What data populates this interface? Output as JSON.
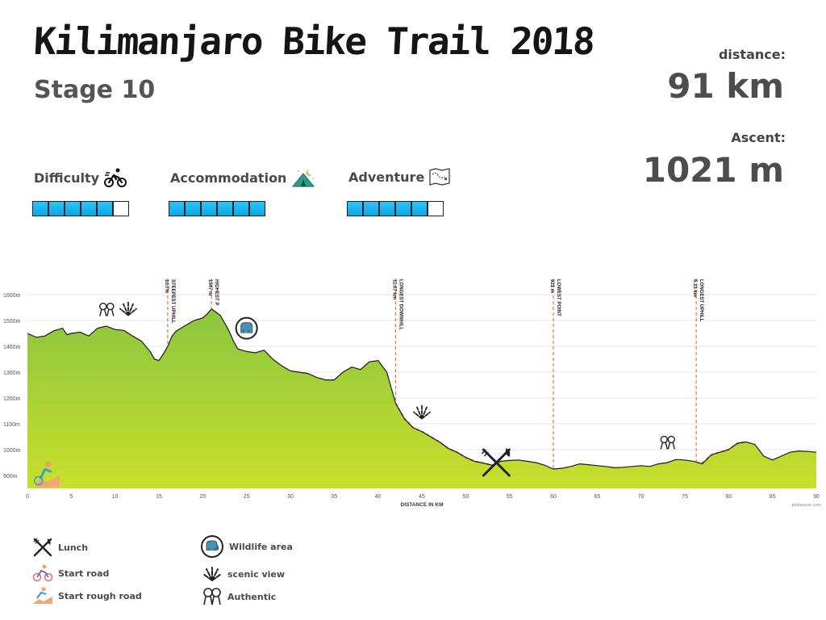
{
  "header": {
    "title": "Kilimanjaro Bike Trail 2018",
    "stage": "Stage 10"
  },
  "stats": {
    "distance_label": "distance:",
    "distance_value": "91 km",
    "ascent_label": "Ascent:",
    "ascent_value": "1021 m"
  },
  "ratings": [
    {
      "label": "Difficulty",
      "icon": "cyclist-icon",
      "level": 5,
      "max": 6
    },
    {
      "label": "Accommodation",
      "icon": "tent-icon",
      "level": 6,
      "max": 6
    },
    {
      "label": "Adventure",
      "icon": "map-icon",
      "level": 5,
      "max": 6
    }
  ],
  "colors": {
    "fill_top": "#8cc63f",
    "fill_bottom": "#c6df2e",
    "line": "#1a1a1a",
    "marker": "#f07040",
    "rating_on": "#1ab0ee",
    "grid": "#e6e6e6"
  },
  "chart_data": {
    "type": "area",
    "xlabel": "DISTANCE IN KM",
    "ylabel": "",
    "xlim": [
      0,
      90
    ],
    "ylim": [
      850,
      1600
    ],
    "x_ticks": [
      0,
      5,
      10,
      15,
      20,
      25,
      30,
      35,
      40,
      45,
      50,
      55,
      60,
      65,
      70,
      75,
      80,
      85,
      90
    ],
    "y_ticks": [
      "900m",
      "1000m",
      "1100m",
      "1200m",
      "1300m",
      "1400m",
      "1500m",
      "1600m"
    ],
    "credit": "plotaroute.com",
    "x": [
      0,
      1,
      2,
      3,
      4,
      4.5,
      5,
      6,
      7,
      8,
      9,
      10,
      11,
      12,
      13,
      13.5,
      14,
      14.5,
      15,
      15.5,
      16,
      16.5,
      17,
      18,
      19,
      20,
      20.5,
      21,
      22,
      22.5,
      23,
      23.5,
      24,
      25,
      26,
      27,
      28,
      29,
      30,
      31,
      32,
      33,
      34,
      35,
      36,
      37,
      38,
      39,
      40,
      41,
      42,
      43,
      44,
      45,
      46,
      47,
      48,
      49,
      50,
      51,
      52,
      53,
      54,
      55,
      56,
      57,
      58,
      59,
      60,
      61,
      62,
      63,
      64,
      65,
      66,
      67,
      68,
      69,
      70,
      71,
      72,
      73,
      74,
      75,
      76,
      77,
      78,
      79,
      80,
      81,
      82,
      83,
      84,
      85,
      86,
      87,
      88,
      89,
      90,
      91
    ],
    "y": [
      1450,
      1435,
      1440,
      1460,
      1470,
      1445,
      1450,
      1455,
      1440,
      1470,
      1478,
      1465,
      1462,
      1440,
      1420,
      1400,
      1380,
      1350,
      1345,
      1370,
      1400,
      1440,
      1460,
      1480,
      1500,
      1510,
      1525,
      1545,
      1520,
      1490,
      1460,
      1420,
      1390,
      1380,
      1375,
      1385,
      1350,
      1325,
      1305,
      1300,
      1295,
      1280,
      1270,
      1270,
      1300,
      1320,
      1310,
      1340,
      1345,
      1300,
      1180,
      1120,
      1085,
      1070,
      1050,
      1030,
      1005,
      990,
      970,
      955,
      948,
      940,
      955,
      958,
      960,
      955,
      950,
      940,
      925,
      928,
      935,
      945,
      942,
      938,
      935,
      930,
      932,
      935,
      938,
      935,
      945,
      950,
      962,
      960,
      955,
      945,
      980,
      990,
      1000,
      1025,
      1030,
      1020,
      975,
      960,
      975,
      990,
      995,
      993,
      990,
      990
    ],
    "annotations": [
      {
        "km": 16.0,
        "label": "STEEPEST UPHILL",
        "value": "10.7%"
      },
      {
        "km": 21.0,
        "label": "HIGHEST P",
        "value": "1547 m"
      },
      {
        "km": 42.0,
        "label": "LONGEST DOWNHILL",
        "value": "11.07 km"
      },
      {
        "km": 60.0,
        "label": "LOWEST POINT",
        "value": "921 m"
      },
      {
        "km": 76.3,
        "label": "LONGEST UPHILL",
        "value": "5.13 km"
      }
    ],
    "highlight_ranges": [
      [
        42,
        53
      ],
      [
        76.3,
        82
      ]
    ],
    "icons": [
      {
        "name": "authentic-icon",
        "km": 9,
        "alt": 1545
      },
      {
        "name": "scenic-view-icon",
        "km": 11.5,
        "alt": 1545
      },
      {
        "name": "wildlife-icon",
        "km": 25,
        "alt": 1470,
        "circle": true
      },
      {
        "name": "scenic-view-icon",
        "km": 45,
        "alt": 1145
      },
      {
        "name": "lunch-icon",
        "km": 53.5,
        "alt": 950
      },
      {
        "name": "authentic-icon",
        "km": 73,
        "alt": 1030
      },
      {
        "name": "start-rough-road-icon",
        "km": 2,
        "alt": 905
      }
    ]
  },
  "legend": [
    {
      "label": "Lunch",
      "icon": "lunch-icon"
    },
    {
      "label": "Start road",
      "icon": "start-road-icon"
    },
    {
      "label": "Start rough road",
      "icon": "start-rough-road-icon"
    },
    {
      "label": "Wildlife area",
      "icon": "wildlife-icon"
    },
    {
      "label": "scenic view",
      "icon": "scenic-view-icon"
    },
    {
      "label": "Authentic",
      "icon": "authentic-icon"
    }
  ]
}
